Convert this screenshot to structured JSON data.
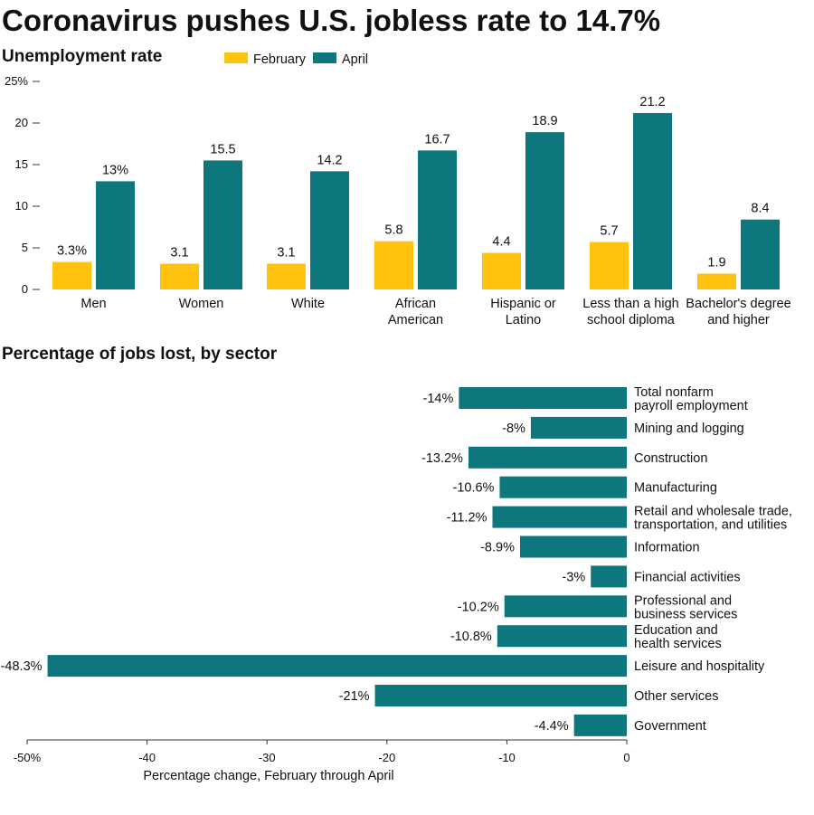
{
  "title": "Coronavirus pushes U.S. jobless rate to 14.7%",
  "colors": {
    "february": "#FFC20E",
    "april": "#0E777D"
  },
  "chart_data": [
    {
      "type": "bar",
      "title": "Unemployment rate",
      "categories": [
        [
          "Men"
        ],
        [
          "Women"
        ],
        [
          "White"
        ],
        [
          "African",
          "American"
        ],
        [
          "Hispanic or",
          "Latino"
        ],
        [
          "Less than a high",
          "school diploma"
        ],
        [
          "Bachelor's degree",
          "and higher"
        ]
      ],
      "series": [
        {
          "name": "February",
          "values": [
            3.3,
            3.1,
            3.1,
            5.8,
            4.4,
            5.7,
            1.9
          ],
          "labels": [
            "3.3%",
            "3.1",
            "3.1",
            "5.8",
            "4.4",
            "5.7",
            "1.9"
          ]
        },
        {
          "name": "April",
          "values": [
            13,
            15.5,
            14.2,
            16.7,
            18.9,
            21.2,
            8.4
          ],
          "labels": [
            "13%",
            "15.5",
            "14.2",
            "16.7",
            "18.9",
            "21.2",
            "8.4"
          ]
        }
      ],
      "ylim": [
        0,
        25
      ],
      "yticks": [
        0,
        5,
        10,
        15,
        20,
        25
      ],
      "ytick_labels": [
        "0",
        "5",
        "10",
        "15",
        "20",
        "25%"
      ],
      "legend": "top"
    },
    {
      "type": "bar",
      "orientation": "horizontal",
      "title": "Percentage of jobs lost, by sector",
      "categories": [
        [
          "Total nonfarm",
          "payroll employment"
        ],
        [
          "Mining and logging"
        ],
        [
          "Construction"
        ],
        [
          "Manufacturing"
        ],
        [
          "Retail and wholesale trade,",
          "transportation, and utilities"
        ],
        [
          "Information"
        ],
        [
          "Financial activities"
        ],
        [
          "Professional and",
          "business services"
        ],
        [
          "Education and",
          "health services"
        ],
        [
          "Leisure and hospitality"
        ],
        [
          "Other services"
        ],
        [
          "Government"
        ]
      ],
      "values": [
        -14,
        -8,
        -13.2,
        -10.6,
        -11.2,
        -8.9,
        -3,
        -10.2,
        -10.8,
        -48.3,
        -21,
        -4.4
      ],
      "labels": [
        "-14%",
        "-8%",
        "-13.2%",
        "-10.6%",
        "-11.2%",
        "-8.9%",
        "-3%",
        "-10.2%",
        "-10.8%",
        "-48.3%",
        "-21%",
        "-4.4%"
      ],
      "xlim": [
        -50,
        0
      ],
      "xticks": [
        -50,
        -40,
        -30,
        -20,
        -10,
        0
      ],
      "xtick_labels": [
        "-50%",
        "-40",
        "-30",
        "-20",
        "-10",
        "0"
      ],
      "xlabel": "Percentage change, February through April"
    }
  ]
}
